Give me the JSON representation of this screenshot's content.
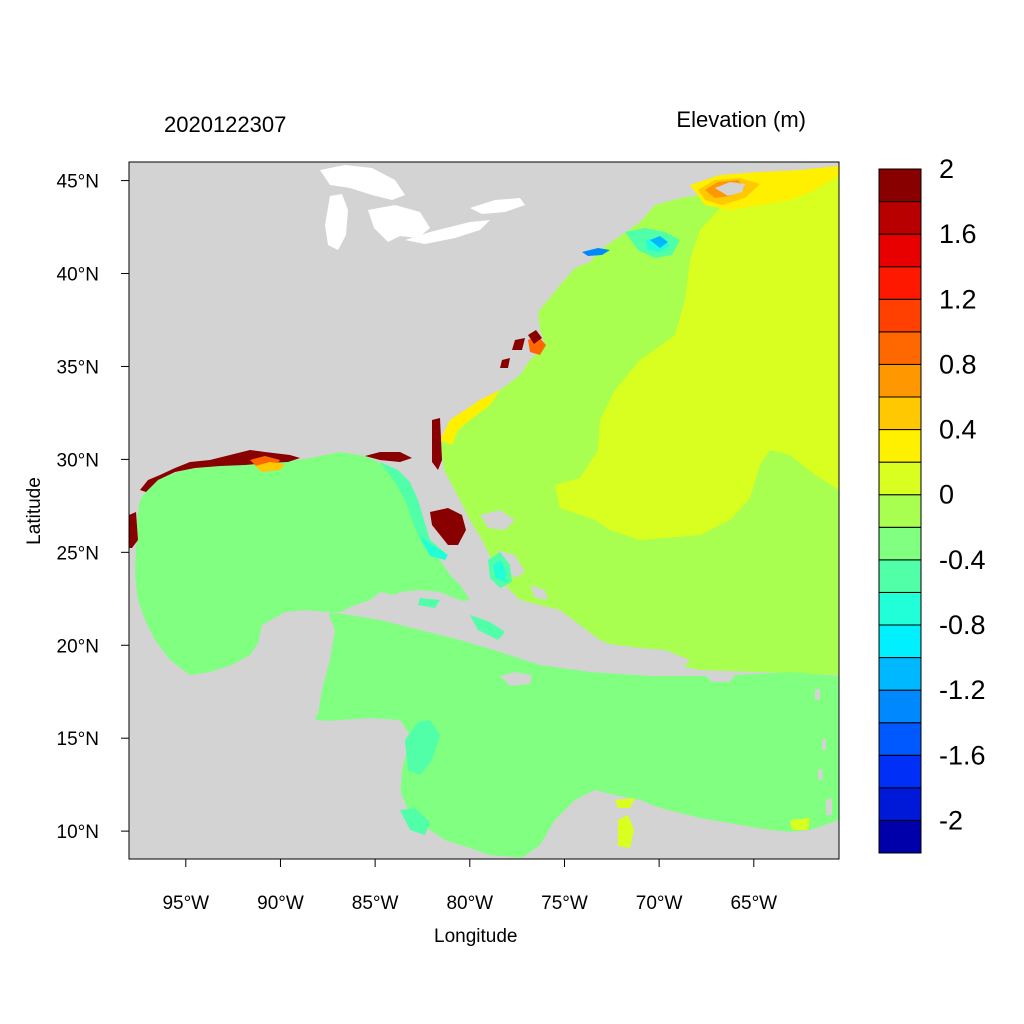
{
  "header": {
    "timestamp": "2020122307",
    "variable": "Elevation (m)"
  },
  "axes": {
    "xlabel": "Longitude",
    "ylabel": "Latitude",
    "lon_range": [
      -98,
      -60.5
    ],
    "lat_range": [
      8.5,
      46
    ],
    "lon_ticks": [
      {
        "value": -95,
        "label": "95°W"
      },
      {
        "value": -90,
        "label": "90°W"
      },
      {
        "value": -85,
        "label": "85°W"
      },
      {
        "value": -80,
        "label": "80°W"
      },
      {
        "value": -75,
        "label": "75°W"
      },
      {
        "value": -70,
        "label": "70°W"
      },
      {
        "value": -65,
        "label": "65°W"
      }
    ],
    "lat_ticks": [
      {
        "value": 45,
        "label": "45°N"
      },
      {
        "value": 40,
        "label": "40°N"
      },
      {
        "value": 35,
        "label": "35°N"
      },
      {
        "value": 30,
        "label": "30°N"
      },
      {
        "value": 25,
        "label": "25°N"
      },
      {
        "value": 20,
        "label": "20°N"
      },
      {
        "value": 15,
        "label": "15°N"
      },
      {
        "value": 10,
        "label": "10°N"
      }
    ]
  },
  "colorbar": {
    "colors": [
      "#0000aa",
      "#0018d8",
      "#0030f8",
      "#0058ff",
      "#0088ff",
      "#00b8ff",
      "#00f0ff",
      "#20ffd8",
      "#50ffa8",
      "#80ff80",
      "#a8ff50",
      "#d8ff20",
      "#fff000",
      "#ffc800",
      "#ff9800",
      "#ff6800",
      "#ff4000",
      "#ff1800",
      "#e80000",
      "#b80000",
      "#880000"
    ],
    "labels": [
      {
        "value": 2,
        "label": "2"
      },
      {
        "value": 1.6,
        "label": "1.6"
      },
      {
        "value": 1.2,
        "label": "1.2"
      },
      {
        "value": 0.8,
        "label": "0.8"
      },
      {
        "value": 0.4,
        "label": "0.4"
      },
      {
        "value": 0,
        "label": "0"
      },
      {
        "value": -0.4,
        "label": "-0.4"
      },
      {
        "value": -0.8,
        "label": "-0.8"
      },
      {
        "value": -1.2,
        "label": "-1.2"
      },
      {
        "value": -1.6,
        "label": "-1.6"
      },
      {
        "value": -2,
        "label": "-2"
      }
    ]
  },
  "colors": {
    "land": "#d3d3d3",
    "lake": "#ffffff",
    "ocean_level_0": "#80ff80",
    "ocean_level_0_2": "#a8ff50",
    "ocean_level_0_3": "#d8ff20",
    "surge_high": "#880000"
  }
}
